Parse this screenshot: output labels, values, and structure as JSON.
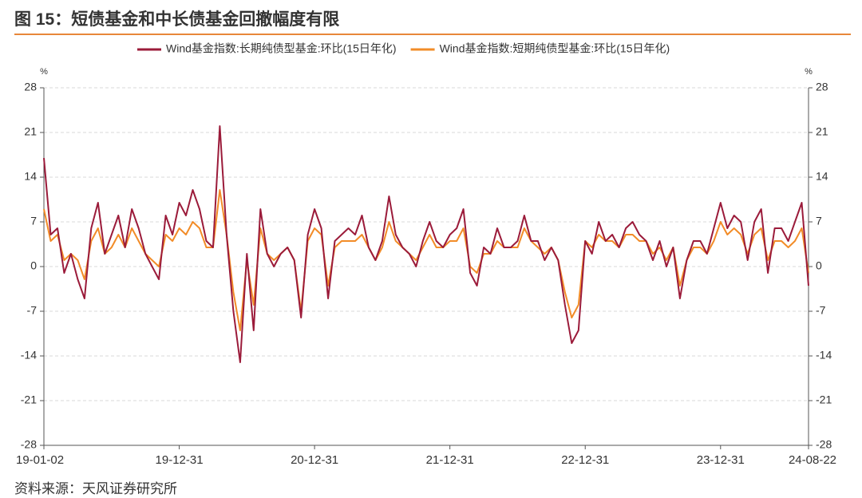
{
  "title": "图 15：短债基金和中长债基金回撤幅度有限",
  "source": "资料来源：天风证券研究所",
  "chart_data": {
    "type": "line",
    "y_unit": "%",
    "y2_unit": "%",
    "categories": [
      "19-01-02",
      null,
      null,
      null,
      null,
      null,
      null,
      null,
      null,
      null,
      null,
      null,
      null,
      null,
      null,
      null,
      null,
      null,
      null,
      null,
      "19-12-31",
      null,
      null,
      null,
      null,
      null,
      null,
      null,
      null,
      null,
      null,
      null,
      null,
      null,
      null,
      null,
      null,
      null,
      null,
      null,
      "20-12-31",
      null,
      null,
      null,
      null,
      null,
      null,
      null,
      null,
      null,
      null,
      null,
      null,
      null,
      null,
      null,
      null,
      null,
      null,
      null,
      "21-12-31",
      null,
      null,
      null,
      null,
      null,
      null,
      null,
      null,
      null,
      null,
      null,
      null,
      null,
      null,
      null,
      null,
      null,
      null,
      null,
      "22-12-31",
      null,
      null,
      null,
      null,
      null,
      null,
      null,
      null,
      null,
      null,
      null,
      null,
      null,
      null,
      null,
      null,
      null,
      null,
      null,
      "23-12-31",
      null,
      null,
      null,
      null,
      null,
      null,
      null,
      null,
      null,
      null,
      null,
      null,
      "24-08-22"
    ],
    "series": [
      {
        "name": "Wind基金指数:长期纯债型基金:环比(15日年化)",
        "color": "#9b1b3a",
        "values": [
          17,
          5,
          6,
          -1,
          2,
          -2,
          -5,
          6,
          10,
          2,
          5,
          8,
          3,
          9,
          6,
          2,
          0,
          -2,
          8,
          5,
          10,
          8,
          12,
          9,
          4,
          3,
          22,
          5,
          -7,
          -15,
          2,
          -10,
          9,
          2,
          0,
          2,
          3,
          1,
          -8,
          5,
          9,
          6,
          -5,
          4,
          5,
          6,
          5,
          8,
          3,
          1,
          4,
          11,
          5,
          3,
          2,
          0,
          4,
          7,
          4,
          3,
          5,
          6,
          9,
          -1,
          -3,
          3,
          2,
          6,
          3,
          3,
          4,
          8,
          4,
          4,
          1,
          3,
          1,
          -6,
          -12,
          -10,
          4,
          2,
          7,
          4,
          5,
          3,
          6,
          7,
          5,
          4,
          1,
          4,
          0,
          3,
          -5,
          1,
          4,
          4,
          2,
          6,
          10,
          6,
          8,
          7,
          1,
          7,
          9,
          -1,
          6,
          6,
          4,
          7,
          10,
          -3
        ]
      },
      {
        "name": "Wind基金指数:短期纯债型基金:环比(15日年化)",
        "color": "#f28c28",
        "values": [
          9,
          4,
          5,
          1,
          2,
          1,
          -2,
          4,
          6,
          2,
          3,
          5,
          3,
          6,
          4,
          2,
          1,
          0,
          5,
          4,
          6,
          5,
          7,
          6,
          3,
          3,
          12,
          5,
          -4,
          -10,
          1,
          -6,
          6,
          2,
          1,
          2,
          3,
          1,
          -7,
          4,
          6,
          5,
          -3,
          3,
          4,
          4,
          4,
          5,
          3,
          1,
          3,
          7,
          4,
          3,
          2,
          1,
          3,
          5,
          3,
          3,
          4,
          4,
          6,
          0,
          -1,
          2,
          2,
          4,
          3,
          3,
          3,
          6,
          4,
          3,
          2,
          3,
          1,
          -4,
          -8,
          -6,
          4,
          3,
          5,
          4,
          4,
          3,
          5,
          5,
          4,
          4,
          2,
          3,
          1,
          3,
          -3,
          1,
          3,
          3,
          2,
          4,
          7,
          5,
          6,
          5,
          2,
          5,
          6,
          1,
          4,
          4,
          3,
          4,
          6,
          -1
        ]
      }
    ],
    "ylim": [
      -28,
      28
    ],
    "yticks": [
      -28,
      -21,
      -14,
      -7,
      0,
      7,
      14,
      21,
      28
    ],
    "y2lim": [
      -28,
      28
    ],
    "y2ticks": [
      -28,
      -21,
      -14,
      -7,
      0,
      7,
      14,
      21,
      28
    ],
    "grid": true,
    "legend": "top"
  }
}
